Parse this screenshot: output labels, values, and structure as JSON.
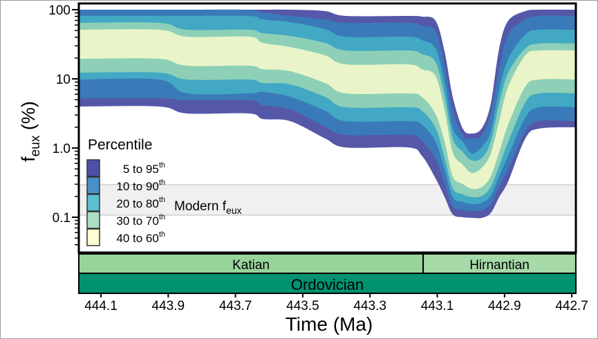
{
  "chart_data": {
    "type": "area",
    "xlabel": "Time (Ma)",
    "ylabel": {
      "main": "f",
      "sub": "eux",
      "suffix": " (%)"
    },
    "xlim": [
      444.166,
      442.688
    ],
    "ylim": [
      0.031,
      123
    ],
    "yscale": "log",
    "xticks": [
      "444.1",
      "443.9",
      "443.7",
      "443.5",
      "443.3",
      "443.1",
      "442.9",
      "442.7"
    ],
    "yticks": [
      {
        "value": 100,
        "label": "100"
      },
      {
        "value": 10,
        "label": "10"
      },
      {
        "value": 1,
        "label": "1.0"
      },
      {
        "value": 0.1,
        "label": "0.1"
      }
    ],
    "grid": false,
    "legend": {
      "title": "Percentile",
      "placement": "bottom-left",
      "entries": [
        {
          "label": "5 to 95",
          "sup": "th",
          "color": "#4d50a6"
        },
        {
          "label": "10 to 90",
          "sup": "th",
          "color": "#4a8fc6"
        },
        {
          "label": "20 to 80",
          "sup": "th",
          "color": "#5bbfcf"
        },
        {
          "label": "30 to 70",
          "sup": "th",
          "color": "#abdec4"
        },
        {
          "label": "40 to 60",
          "sup": "th",
          "color": "#fdfcd2"
        }
      ]
    },
    "band_colors": [
      "#5558a8",
      "#3a7ab8",
      "#42a8c4",
      "#8dd0b7",
      "#e9f5c8"
    ],
    "percentiles": [
      "p5",
      "p10",
      "p20",
      "p30",
      "p40",
      "p60",
      "p70",
      "p80",
      "p90",
      "p95"
    ],
    "time": [
      444.166,
      443.927,
      443.845,
      443.66,
      443.619,
      443.537,
      443.434,
      443.372,
      443.187,
      443.146,
      443.105,
      443.078,
      443.054,
      443.024,
      442.997,
      442.967,
      442.941,
      442.916,
      442.889,
      442.838,
      442.797,
      442.688
    ],
    "values": [
      [
        3.98,
        5.25,
        9.77,
        12.3,
        19.5,
        51.3,
        64.6,
        81.3,
        100,
        100
      ],
      [
        3.98,
        5.25,
        9.77,
        12.3,
        19.5,
        51.3,
        64.6,
        81.3,
        100,
        100
      ],
      [
        3.16,
        4.9,
        6.17,
        9.77,
        15.5,
        40.7,
        51.3,
        81.3,
        100,
        100
      ],
      [
        3.16,
        4.9,
        6.17,
        9.77,
        15.5,
        40.7,
        51.3,
        81.3,
        100,
        100
      ],
      [
        2.63,
        4.17,
        6.46,
        8.71,
        13.8,
        33.1,
        45.7,
        72.4,
        91.2,
        100
      ],
      [
        2.45,
        3.63,
        5.5,
        8.32,
        12.9,
        28.8,
        41.7,
        66.1,
        81.3,
        100
      ],
      [
        1.38,
        2.04,
        3.47,
        5.5,
        8.71,
        21.9,
        33.1,
        52.5,
        72.4,
        95.5
      ],
      [
        1.02,
        1.55,
        2.45,
        3.89,
        6.17,
        16.2,
        25.7,
        40.7,
        64.6,
        81.3
      ],
      [
        1.02,
        1.55,
        2.45,
        3.89,
        6.17,
        16.2,
        25.7,
        40.7,
        64.6,
        81.3
      ],
      [
        0.776,
        1.29,
        2.19,
        3.47,
        5.5,
        13.8,
        22.9,
        36.3,
        58.9,
        79.4
      ],
      [
        0.363,
        0.692,
        1.23,
        1.95,
        3.09,
        11.0,
        17.4,
        27.5,
        49.0,
        69.2
      ],
      [
        0.195,
        0.309,
        0.49,
        0.724,
        1.23,
        3.47,
        5.5,
        8.71,
        15.5,
        24.5
      ],
      [
        0.11,
        0.145,
        0.195,
        0.263,
        0.389,
        0.871,
        1.38,
        1.95,
        3.47,
        5.5
      ],
      [
        0.1,
        0.129,
        0.166,
        0.214,
        0.302,
        0.575,
        0.871,
        1.23,
        1.55,
        1.91
      ],
      [
        0.098,
        0.123,
        0.155,
        0.195,
        0.257,
        0.437,
        0.661,
        0.832,
        1.38,
        1.62
      ],
      [
        0.098,
        0.126,
        0.162,
        0.204,
        0.275,
        0.525,
        0.724,
        1.05,
        1.55,
        1.95
      ],
      [
        0.115,
        0.155,
        0.204,
        0.275,
        0.389,
        0.832,
        1.23,
        1.74,
        3.09,
        4.37
      ],
      [
        0.195,
        0.275,
        0.389,
        0.55,
        0.871,
        2.45,
        4.37,
        6.92,
        13.8,
        27.5
      ],
      [
        0.331,
        0.49,
        0.776,
        1.23,
        2.19,
        7.76,
        12.3,
        19.5,
        43.7,
        69.2
      ],
      [
        1.38,
        1.74,
        2.75,
        4.57,
        7.76,
        21.9,
        27.5,
        43.7,
        72.4,
        95.5
      ],
      [
        1.91,
        2.45,
        3.89,
        6.17,
        9.77,
        25.7,
        32.4,
        51.3,
        81.3,
        100
      ],
      [
        2.0,
        2.45,
        3.89,
        6.17,
        9.77,
        25.7,
        32.4,
        51.3,
        81.3,
        100
      ]
    ],
    "reference_band": {
      "label": "Modern f",
      "sub": "eux",
      "range": [
        0.107,
        0.295
      ],
      "color": "#f0f0f0"
    },
    "timescale": {
      "stages": [
        {
          "name": "Katian",
          "from": 444.166,
          "to": 443.142,
          "color": "#98d49a"
        },
        {
          "name": "Hirnantian",
          "from": 443.142,
          "to": 442.688,
          "color": "#a6d9a8"
        }
      ],
      "period": {
        "name": "Ordovician",
        "color": "#009270"
      }
    }
  }
}
